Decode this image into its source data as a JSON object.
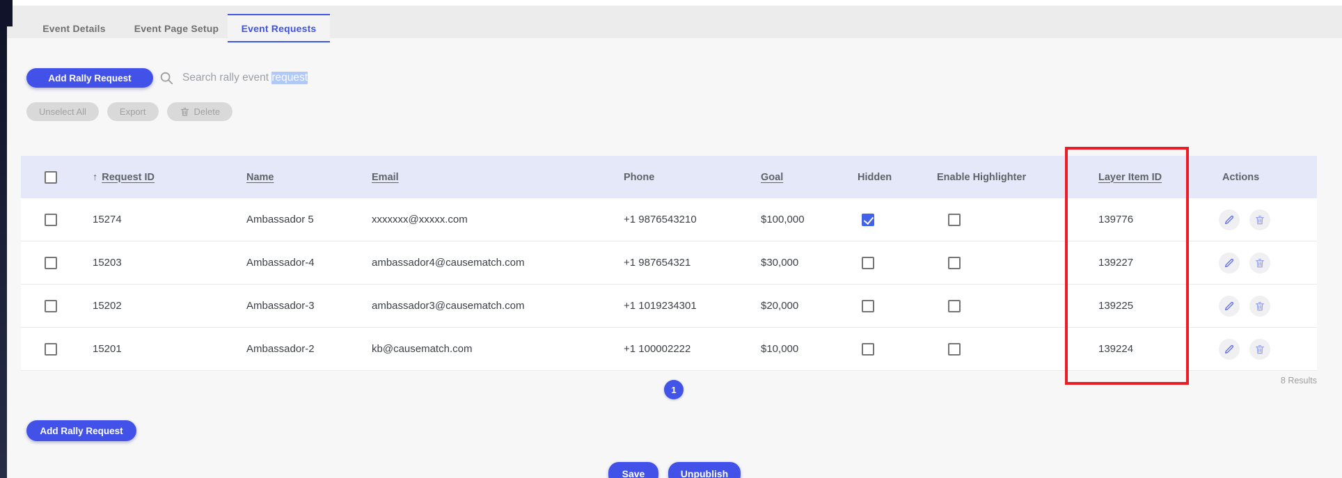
{
  "colors": {
    "primary_blue": "#4252e8",
    "active_tab_blue": "#3d52e6",
    "table_header_bg": "#e4e8f9",
    "selection_highlight": "#b1c9f7",
    "annotation_red": "#ec1c24",
    "checked_checkbox": "#4262ea",
    "sidebar_edge_dark": "#10132a"
  },
  "tabs": [
    {
      "label": "Event Details",
      "active": false
    },
    {
      "label": "Event Page Setup",
      "active": false
    },
    {
      "label": "Event Requests",
      "active": true
    }
  ],
  "toolbar": {
    "add_rally_request_label": "Add Rally Request",
    "search_text_prefix": "Search rally event ",
    "search_text_selected": "request"
  },
  "bulk_actions": {
    "unselect_all_label": "Unselect All",
    "export_label": "Export",
    "delete_label": "Delete"
  },
  "table": {
    "columns": [
      {
        "key": "select",
        "label": "",
        "type": "checkbox"
      },
      {
        "key": "request_id",
        "label": "Request ID",
        "sortable": true,
        "sorted": "asc",
        "sort_icon": "↑"
      },
      {
        "key": "name",
        "label": "Name",
        "sortable": true
      },
      {
        "key": "email",
        "label": "Email",
        "sortable": true
      },
      {
        "key": "phone",
        "label": "Phone",
        "sortable": false
      },
      {
        "key": "goal",
        "label": "Goal",
        "sortable": true
      },
      {
        "key": "hidden",
        "label": "Hidden",
        "type": "checkbox"
      },
      {
        "key": "enable_highlighter",
        "label": "Enable Highlighter",
        "type": "checkbox"
      },
      {
        "key": "layer_item_id",
        "label": "Layer Item ID",
        "sortable": true,
        "highlighted": true
      },
      {
        "key": "actions",
        "label": "Actions",
        "icons": [
          "edit-pencil-icon",
          "delete-trash-icon"
        ]
      }
    ],
    "rows": [
      {
        "selected": false,
        "request_id": "15274",
        "name": "Ambassador 5",
        "email": "xxxxxxx@xxxxx.com",
        "phone": "+1 9876543210",
        "goal": "$100,000",
        "hidden": true,
        "enable_highlighter": false,
        "layer_item_id": "139776"
      },
      {
        "selected": false,
        "request_id": "15203",
        "name": "Ambassador-4",
        "email": "ambassador4@causematch.com",
        "phone": "+1 987654321",
        "goal": "$30,000",
        "hidden": false,
        "enable_highlighter": false,
        "layer_item_id": "139227"
      },
      {
        "selected": false,
        "request_id": "15202",
        "name": "Ambassador-3",
        "email": "ambassador3@causematch.com",
        "phone": "+1 1019234301",
        "goal": "$20,000",
        "hidden": false,
        "enable_highlighter": false,
        "layer_item_id": "139225"
      },
      {
        "selected": false,
        "request_id": "15201",
        "name": "Ambassador-2",
        "email": "kb@causematch.com",
        "phone": "+1 100002222",
        "goal": "$10,000",
        "hidden": false,
        "enable_highlighter": false,
        "layer_item_id": "139224"
      }
    ]
  },
  "pagination": {
    "current_page": "1",
    "results_label": "8 Results"
  },
  "footer": {
    "add_rally_request_label": "Add Rally Request",
    "save_label": "Save",
    "unpublish_label": "Unpublish"
  }
}
